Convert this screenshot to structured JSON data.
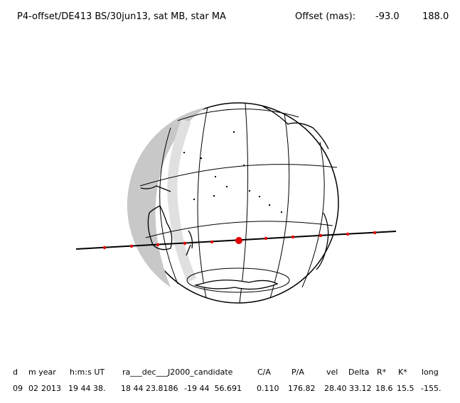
{
  "header": {
    "title": "P4-offset/DE413 BS/30jun13, sat MB, star MA",
    "offset_label": "Offset (mas):",
    "offset_values": [
      "-93.0",
      "188.0"
    ]
  },
  "table": {
    "columns": [
      "d",
      "m year",
      "h:m:s UT",
      "ra___dec___J2000_candidate",
      "C/A",
      "P/A",
      "vel",
      "Delta",
      "R*",
      "K*",
      "long"
    ],
    "rows": [
      [
        "09",
        "02",
        "2013",
        "19 44 38.",
        "18 44 23.8186",
        "-19 44  56.691",
        "0.110",
        "176.82",
        "28.40",
        "33.12",
        "18.6",
        "15.5",
        "-155."
      ]
    ]
  }
}
